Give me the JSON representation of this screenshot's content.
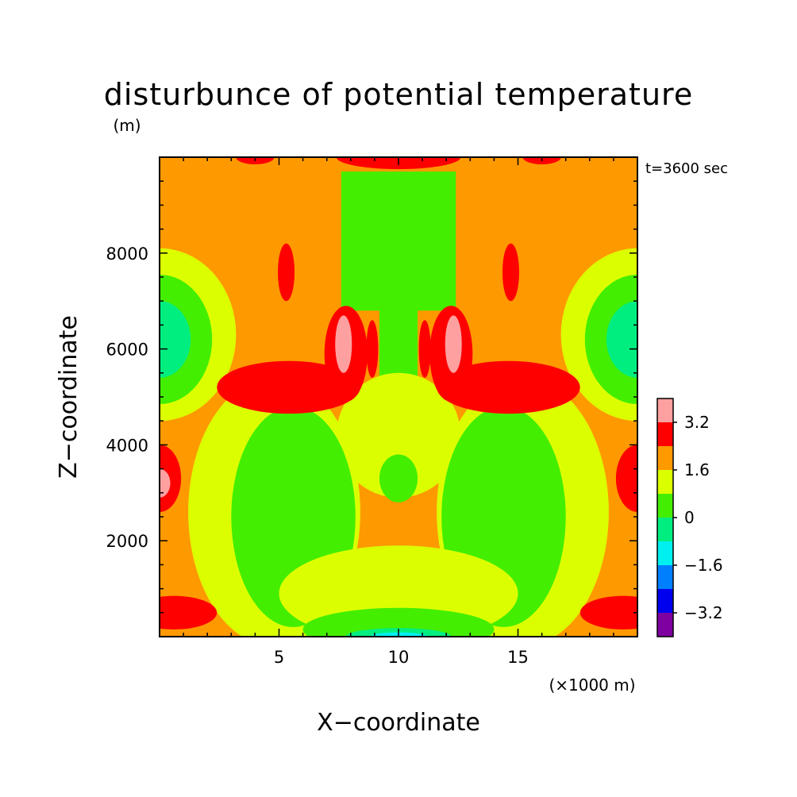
{
  "chart_data": {
    "type": "heatmap",
    "title": "disturbunce of potential temperature",
    "time_label": "t=3600 sec",
    "xlabel": "X−coordinate",
    "ylabel": "Z−coordinate",
    "x_unit": "(×1000 m)",
    "y_unit": "(m)",
    "xlim": [
      0,
      20
    ],
    "ylim": [
      0,
      10000
    ],
    "x_ticks": [
      5,
      10,
      15
    ],
    "x_tick_labels": [
      "5",
      "10",
      "15"
    ],
    "y_ticks": [
      2000,
      4000,
      6000,
      8000
    ],
    "y_tick_labels": [
      "2000",
      "4000",
      "6000",
      "8000"
    ],
    "colorbar": {
      "levels": [
        -4.0,
        -3.2,
        -2.4,
        -1.6,
        -0.8,
        0,
        0.8,
        1.6,
        2.4,
        3.2,
        4.0
      ],
      "labels": [
        "3.2",
        "1.6",
        "0",
        "−1.6",
        "−3.2"
      ],
      "label_values": [
        3.2,
        1.6,
        0,
        -1.6,
        -3.2
      ],
      "colors": [
        "#7f00a0",
        "#0000ee",
        "#0080ff",
        "#00f0f0",
        "#00ee80",
        "#44ee00",
        "#dcff00",
        "#ff9900",
        "#ff0000",
        "#ffa0a0"
      ]
    },
    "background_color": "#ff9900",
    "regions": [
      {
        "name": "upper-center-green-block",
        "shape": "rect",
        "x": [
          7.6,
          12.4
        ],
        "z": [
          6800,
          9700
        ],
        "level": 0.4
      },
      {
        "name": "center-green-column",
        "shape": "rect",
        "x": [
          9.2,
          10.8
        ],
        "z": [
          4800,
          7000
        ],
        "level": 0.4
      },
      {
        "name": "mid-center-yellow",
        "shape": "ellipse",
        "cx": 10.0,
        "cz": 4200,
        "rx": 2.6,
        "rz": 1300,
        "level": 1.2
      },
      {
        "name": "mid-center-green-blob",
        "shape": "ellipse",
        "cx": 10.0,
        "cz": 3300,
        "rx": 0.8,
        "rz": 500,
        "level": 0.4
      },
      {
        "name": "left-edge-yellow",
        "shape": "ellipse",
        "cx": 0.0,
        "cz": 6300,
        "rx": 3.2,
        "rz": 1800,
        "level": 1.2
      },
      {
        "name": "left-edge-green",
        "shape": "ellipse",
        "cx": 0.0,
        "cz": 6200,
        "rx": 2.2,
        "rz": 1350,
        "level": 0.4
      },
      {
        "name": "left-edge-teal",
        "shape": "ellipse",
        "cx": 0.0,
        "cz": 6200,
        "rx": 1.3,
        "rz": 800,
        "level": -0.4
      },
      {
        "name": "right-edge-yellow",
        "shape": "ellipse",
        "cx": 20.0,
        "cz": 6300,
        "rx": 3.2,
        "rz": 1800,
        "level": 1.2
      },
      {
        "name": "right-edge-green",
        "shape": "ellipse",
        "cx": 20.0,
        "cz": 6200,
        "rx": 2.2,
        "rz": 1350,
        "level": 0.4
      },
      {
        "name": "right-edge-teal",
        "shape": "ellipse",
        "cx": 20.0,
        "cz": 6200,
        "rx": 1.3,
        "rz": 800,
        "level": -0.4
      },
      {
        "name": "left-lower-yellow",
        "shape": "ellipse",
        "cx": 4.8,
        "cz": 2600,
        "rx": 3.6,
        "rz": 2800,
        "level": 1.2
      },
      {
        "name": "left-lower-green",
        "shape": "ellipse",
        "cx": 5.6,
        "cz": 2500,
        "rx": 2.6,
        "rz": 2300,
        "level": 0.4
      },
      {
        "name": "right-lower-yellow",
        "shape": "ellipse",
        "cx": 15.2,
        "cz": 2600,
        "rx": 3.6,
        "rz": 2800,
        "level": 1.2
      },
      {
        "name": "right-lower-green",
        "shape": "ellipse",
        "cx": 14.4,
        "cz": 2500,
        "rx": 2.6,
        "rz": 2300,
        "level": 0.4
      },
      {
        "name": "bottom-center-yellow",
        "shape": "ellipse",
        "cx": 10.0,
        "cz": 900,
        "rx": 5.0,
        "rz": 1000,
        "level": 1.2
      },
      {
        "name": "bottom-center-green",
        "shape": "ellipse",
        "cx": 10.0,
        "cz": 150,
        "rx": 4.0,
        "rz": 450,
        "level": 0.4
      },
      {
        "name": "bottom-center-teal",
        "shape": "ellipse",
        "cx": 10.0,
        "cz": 0,
        "rx": 2.2,
        "rz": 180,
        "level": -0.4
      },
      {
        "name": "bottom-center-cyan",
        "shape": "ellipse",
        "cx": 10.0,
        "cz": 0,
        "rx": 1.2,
        "rz": 90,
        "level": -1.2
      },
      {
        "name": "left-red-lobe",
        "shape": "ellipse",
        "cx": 5.4,
        "cz": 5200,
        "rx": 3.0,
        "rz": 550,
        "level": 2.8
      },
      {
        "name": "left-red-arm",
        "shape": "ellipse",
        "cx": 7.8,
        "cz": 5900,
        "rx": 0.9,
        "rz": 1000,
        "level": 2.8
      },
      {
        "name": "left-pink-core",
        "shape": "ellipse",
        "cx": 7.7,
        "cz": 6100,
        "rx": 0.35,
        "rz": 600,
        "level": 3.6
      },
      {
        "name": "right-red-lobe",
        "shape": "ellipse",
        "cx": 14.6,
        "cz": 5200,
        "rx": 3.0,
        "rz": 550,
        "level": 2.8
      },
      {
        "name": "right-red-arm",
        "shape": "ellipse",
        "cx": 12.2,
        "cz": 5900,
        "rx": 0.9,
        "rz": 1000,
        "level": 2.8
      },
      {
        "name": "right-pink-core",
        "shape": "ellipse",
        "cx": 12.3,
        "cz": 6100,
        "rx": 0.35,
        "rz": 600,
        "level": 3.6
      },
      {
        "name": "left-inner-red",
        "shape": "ellipse",
        "cx": 8.9,
        "cz": 6000,
        "rx": 0.25,
        "rz": 600,
        "level": 2.8
      },
      {
        "name": "right-inner-red",
        "shape": "ellipse",
        "cx": 11.1,
        "cz": 6000,
        "rx": 0.25,
        "rz": 600,
        "level": 2.8
      },
      {
        "name": "left-upper-red",
        "shape": "ellipse",
        "cx": 5.3,
        "cz": 7600,
        "rx": 0.35,
        "rz": 600,
        "level": 2.8
      },
      {
        "name": "right-upper-red",
        "shape": "ellipse",
        "cx": 14.7,
        "cz": 7600,
        "rx": 0.35,
        "rz": 600,
        "level": 2.8
      },
      {
        "name": "top-center-red",
        "shape": "ellipse",
        "cx": 10.0,
        "cz": 10000,
        "rx": 2.6,
        "rz": 250,
        "level": 2.8
      },
      {
        "name": "top-left-red",
        "shape": "ellipse",
        "cx": 4.0,
        "cz": 10000,
        "rx": 0.8,
        "rz": 150,
        "level": 2.8
      },
      {
        "name": "top-right-red",
        "shape": "ellipse",
        "cx": 16.0,
        "cz": 10000,
        "rx": 0.8,
        "rz": 150,
        "level": 2.8
      },
      {
        "name": "left-mid-red",
        "shape": "ellipse",
        "cx": 0.0,
        "cz": 3300,
        "rx": 0.9,
        "rz": 700,
        "level": 2.8
      },
      {
        "name": "left-mid-pink",
        "shape": "ellipse",
        "cx": 0.0,
        "cz": 3200,
        "rx": 0.45,
        "rz": 300,
        "level": 3.6
      },
      {
        "name": "right-mid-red",
        "shape": "ellipse",
        "cx": 20.0,
        "cz": 3300,
        "rx": 0.9,
        "rz": 700,
        "level": 2.8
      },
      {
        "name": "left-bottom-red",
        "shape": "ellipse",
        "cx": 0.6,
        "cz": 500,
        "rx": 1.8,
        "rz": 350,
        "level": 2.8
      },
      {
        "name": "right-bottom-red",
        "shape": "ellipse",
        "cx": 19.4,
        "cz": 500,
        "rx": 1.8,
        "rz": 350,
        "level": 2.8
      }
    ]
  }
}
